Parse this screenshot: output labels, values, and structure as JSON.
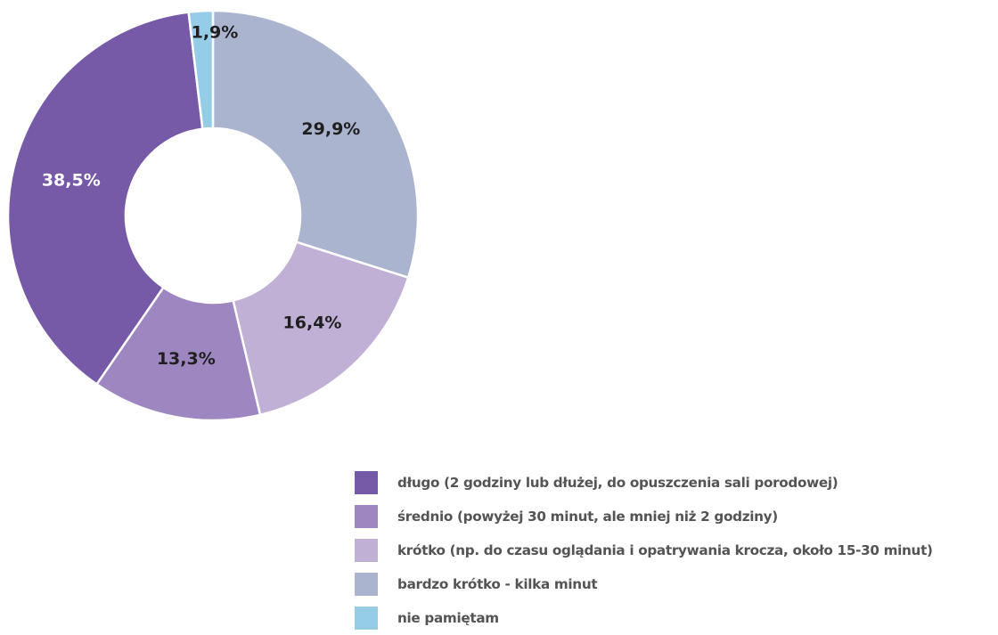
{
  "chart_data": {
    "type": "pie",
    "style": "donut",
    "title": "",
    "legend_position": "bottom-right",
    "slices": [
      {
        "label": "bardzo krótko - kilka minut",
        "value": 29.9,
        "display": "29,9%",
        "color": "#aab4ce",
        "label_color": "#1f1f1f"
      },
      {
        "label": "krótko (np. do czasu oglądania i opatrywania krocza, około 15-30 minut)",
        "value": 16.4,
        "display": "16,4%",
        "color": "#c0b0d6",
        "label_color": "#1f1f1f"
      },
      {
        "label": "średnio (powyżej 30 minut, ale mniej niż 2 godziny)",
        "value": 13.3,
        "display": "13,3%",
        "color": "#9e86c0",
        "label_color": "#1f1f1f"
      },
      {
        "label": "długo (2 godziny lub dłużej, do opuszczenia sali porodowej)",
        "value": 38.5,
        "display": "38,5%",
        "color": "#7659a7",
        "label_color": "#ffffff"
      },
      {
        "label": "nie pamiętam",
        "value": 1.9,
        "display": "1,9%",
        "color": "#94cde5",
        "label_color": "#1f1f1f"
      }
    ],
    "legend_order": [
      3,
      2,
      1,
      0,
      4
    ]
  }
}
